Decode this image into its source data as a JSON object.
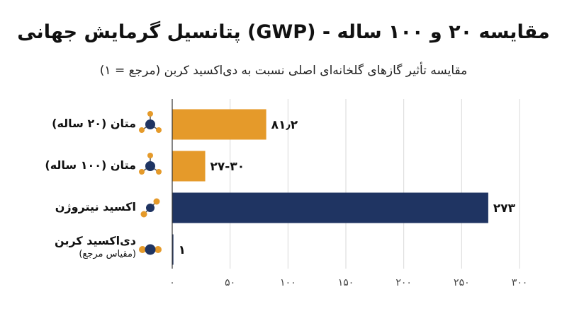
{
  "chart_data": {
    "type": "bar",
    "orientation": "horizontal",
    "title": "پتانسیل گرمایش جهانی (GWP) - مقایسه ۲۰ و ۱۰۰ ساله",
    "subtitle": "مقایسه تأثیر گازهای گلخانه‌ای اصلی نسبت به دی‌اکسید کربن (مرجع = ۱)",
    "categories": [
      "متان (۲۰ ساله)",
      "متان (۱۰۰ ساله)",
      "اکسید نیتروژن",
      "دی‌اکسید کربن"
    ],
    "category_notes": [
      "",
      "",
      "",
      "(مقیاس مرجع)"
    ],
    "values": [
      81.2,
      28.5,
      273,
      1
    ],
    "value_labels": [
      "۸۱٫۲",
      "۲۷-۳۰",
      "۲۷۳",
      "۱"
    ],
    "bar_colors": [
      "#E59A2A",
      "#E59A2A",
      "#1F3462",
      "#1F3462"
    ],
    "icons": [
      "methane-molecule-icon",
      "methane-molecule-icon",
      "nitrous-oxide-molecule-icon",
      "carbon-dioxide-molecule-icon"
    ],
    "xlim": [
      0,
      300
    ],
    "x_ticks": [
      0,
      50,
      100,
      150,
      200,
      250,
      300
    ],
    "x_tick_labels": [
      "۰",
      "۵۰",
      "۱۰۰",
      "۱۵۰",
      "۲۰۰",
      "۲۵۰",
      "۳۰۰"
    ],
    "grid": true,
    "xlabel": "",
    "ylabel": ""
  },
  "colors": {
    "orange": "#E59A2A",
    "navy": "#1F3462",
    "grid": "#D9D9D9",
    "axis": "#333333"
  }
}
